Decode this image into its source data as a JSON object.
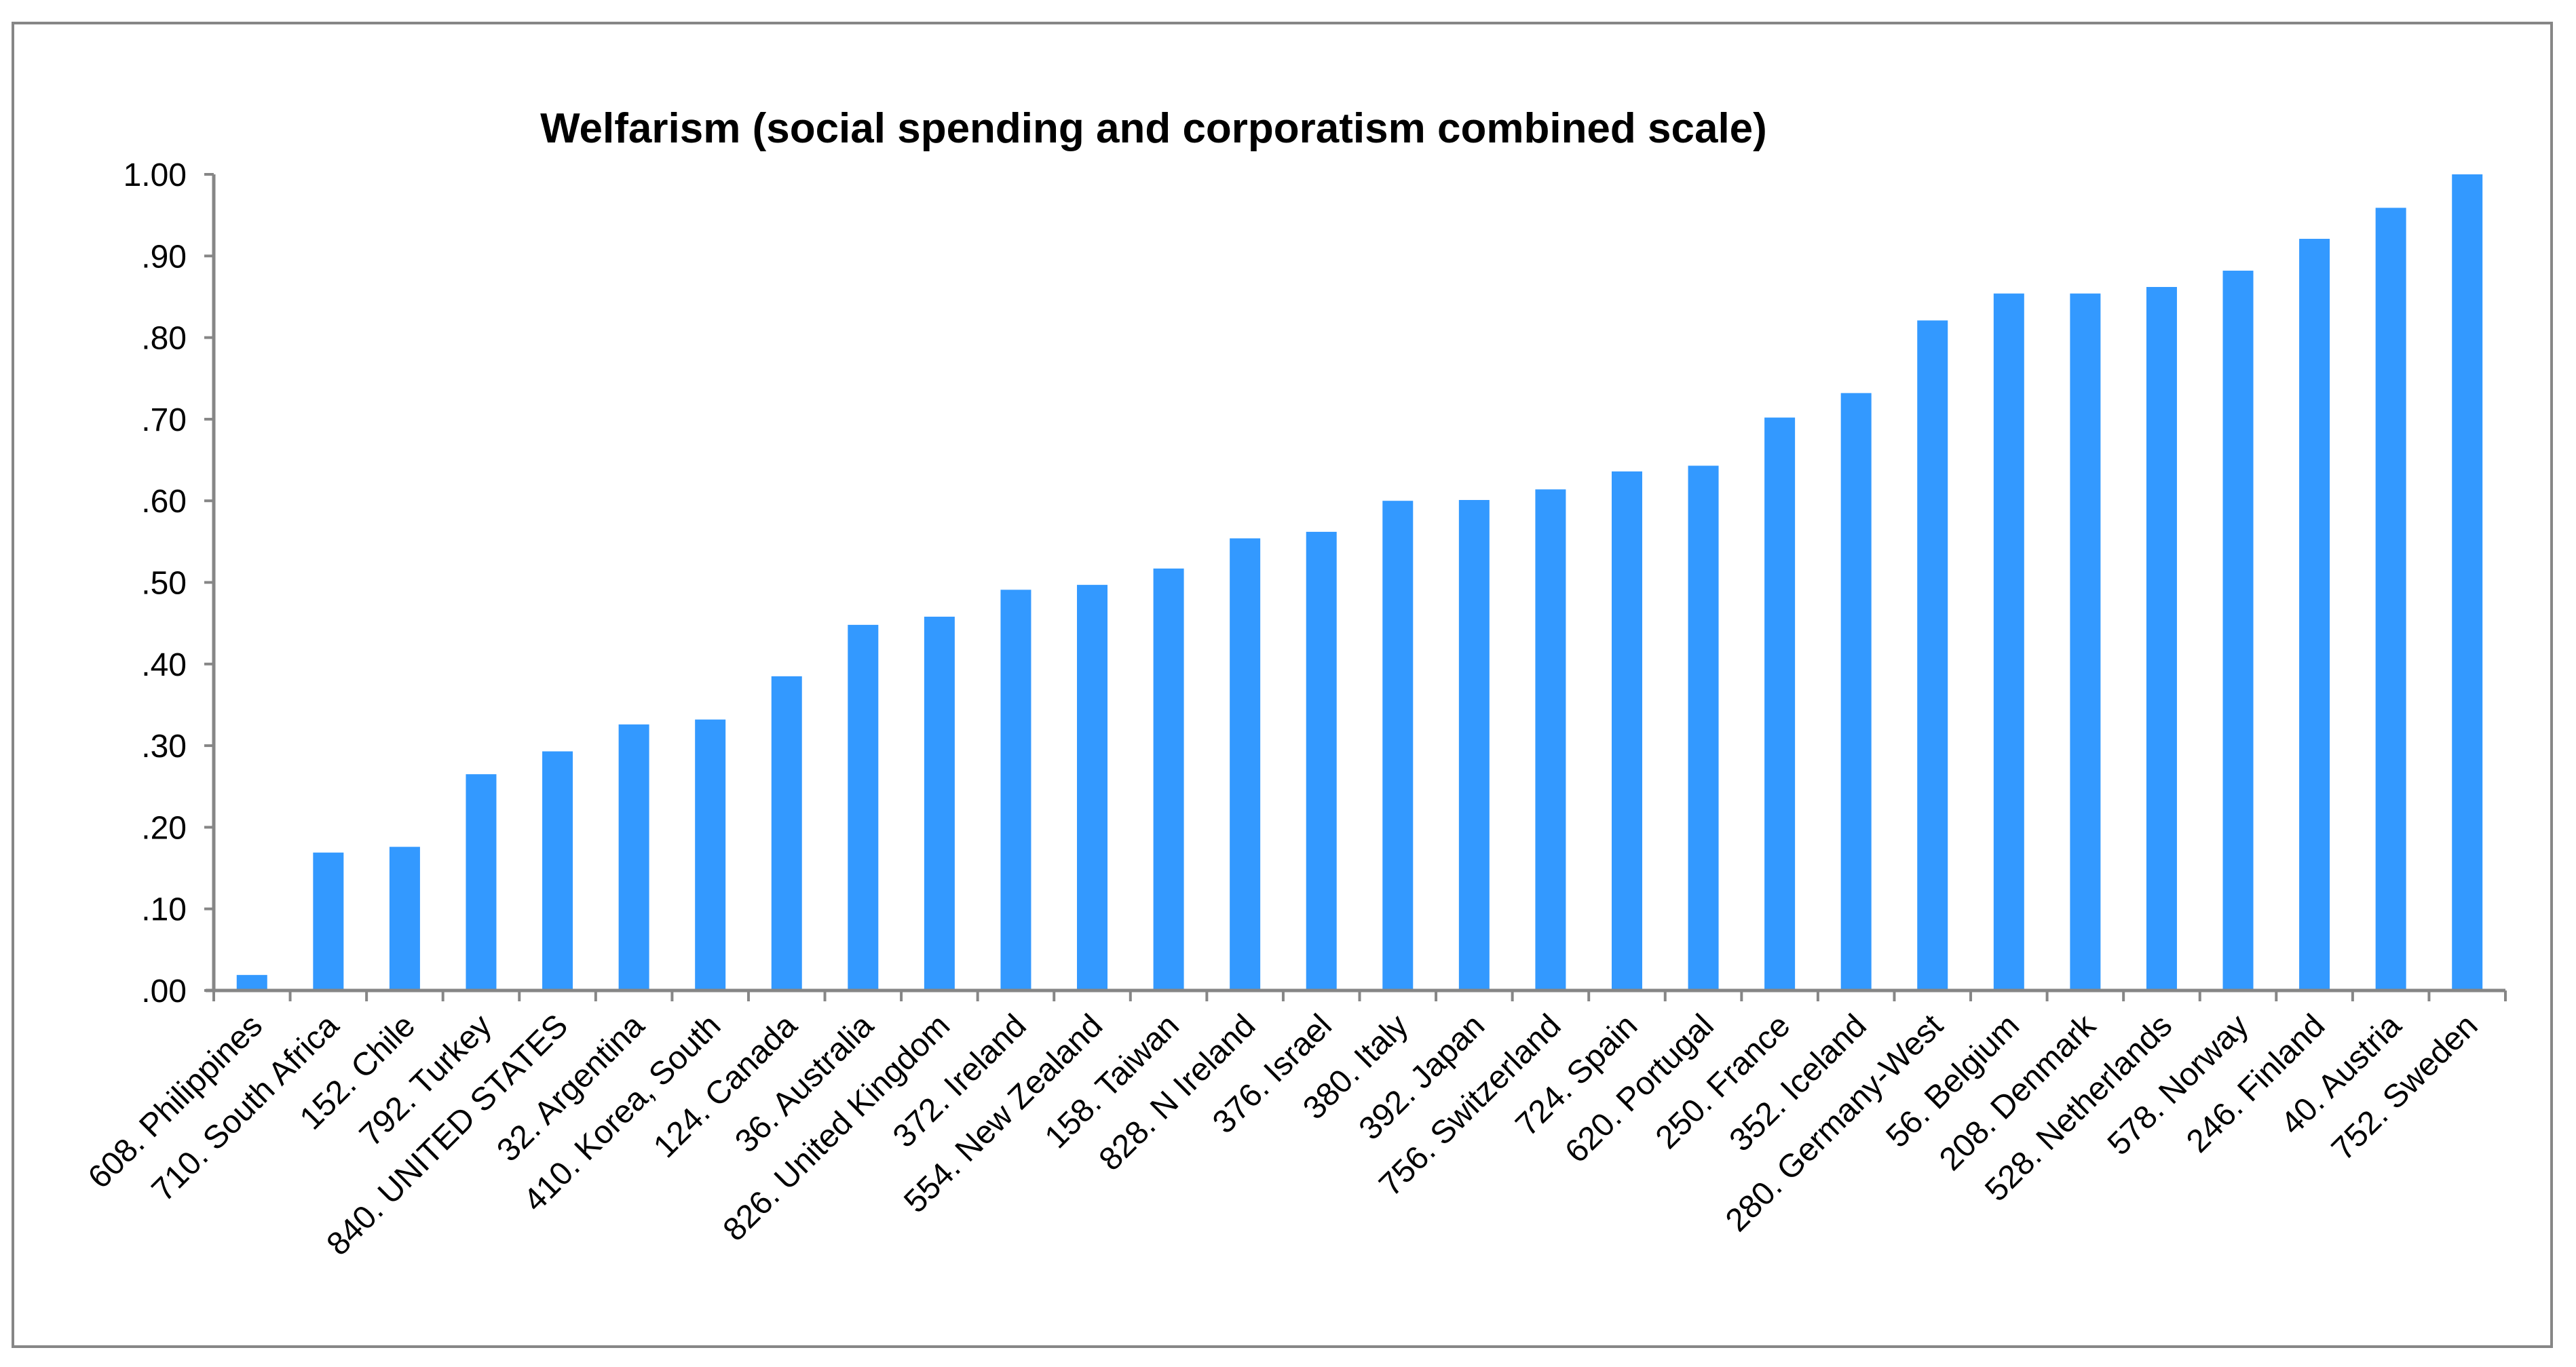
{
  "chart_data": {
    "type": "bar",
    "title": "Welfarism (social spending and corporatism combined scale)",
    "xlabel": "",
    "ylabel": "",
    "ylim": [
      0,
      1.0
    ],
    "yticks": [
      ".00",
      ".10",
      ".20",
      ".30",
      ".40",
      ".50",
      ".60",
      ".70",
      ".80",
      ".90",
      "1.00"
    ],
    "grid": false,
    "bar_color": "#3399FF",
    "axis_color": "#868686",
    "categories": [
      "608. Philippines",
      "710. South Africa",
      "152. Chile",
      "792. Turkey",
      "840. UNITED STATES",
      "32. Argentina",
      "410. Korea, South",
      "124. Canada",
      "36. Australia",
      "826. United Kingdom",
      "372. Ireland",
      "554. New Zealand",
      "158. Taiwan",
      "828. N Ireland",
      "376. Israel",
      "380. Italy",
      "392. Japan",
      "756. Switzerland",
      "724. Spain",
      "620. Portugal",
      "250. France",
      "352. Iceland",
      "280. Germany-West",
      "56. Belgium",
      "208. Denmark",
      "528. Netherlands",
      "578. Norway",
      "246. Finland",
      "40. Austria",
      "752. Sweden"
    ],
    "values": [
      0.019,
      0.169,
      0.176,
      0.265,
      0.293,
      0.326,
      0.332,
      0.385,
      0.448,
      0.458,
      0.491,
      0.497,
      0.517,
      0.554,
      0.562,
      0.6,
      0.601,
      0.614,
      0.636,
      0.643,
      0.702,
      0.732,
      0.821,
      0.854,
      0.854,
      0.862,
      0.882,
      0.921,
      0.959,
      1.0
    ]
  }
}
